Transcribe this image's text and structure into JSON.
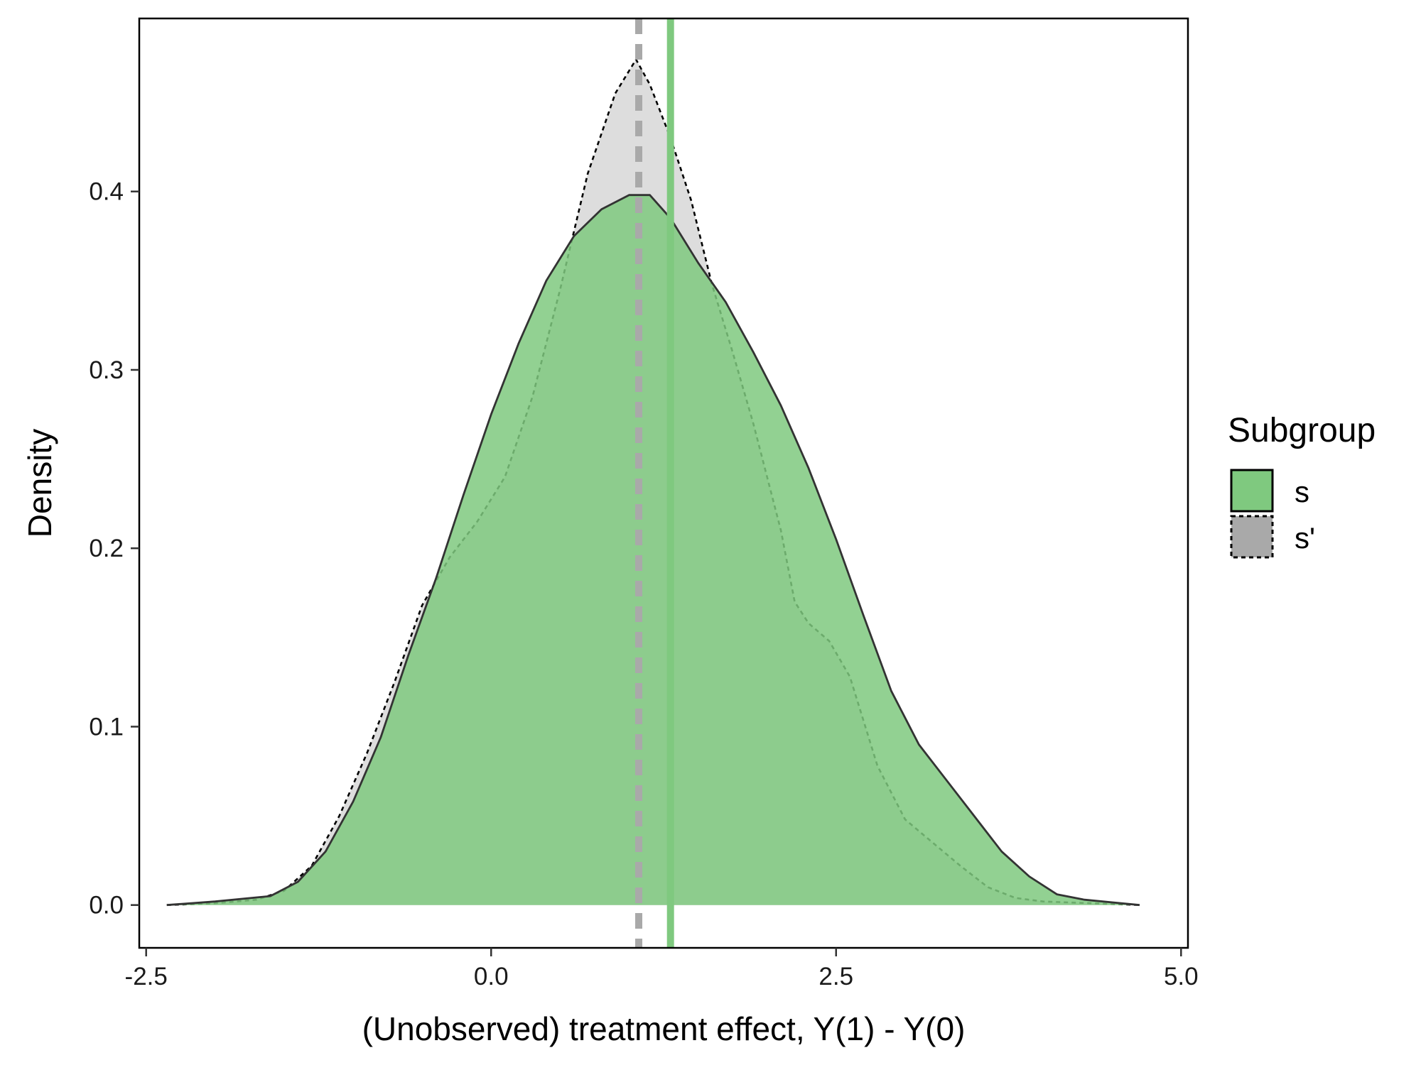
{
  "chart_data": {
    "type": "area",
    "title": "",
    "xlabel": "(Unobserved) treatment effect, Y(1) - Y(0)",
    "ylabel": "Density",
    "xlim": [
      -2.55,
      5.05
    ],
    "ylim": [
      -0.024,
      0.497
    ],
    "x_ticks": [
      -2.5,
      0.0,
      2.5,
      5.0
    ],
    "x_tick_labels": [
      "-2.5",
      "0.0",
      "2.5",
      "5.0"
    ],
    "y_ticks": [
      0.0,
      0.1,
      0.2,
      0.3,
      0.4
    ],
    "y_tick_labels": [
      "0.0",
      "0.1",
      "0.2",
      "0.3",
      "0.4"
    ],
    "grid": false,
    "legend": {
      "title": "Subgroup",
      "position": "right"
    },
    "series": [
      {
        "name": "s",
        "fill": "#7fc97f",
        "line_style": "solid",
        "mean_line": 1.3,
        "mean_line_color": "#7fc97f",
        "mean_line_style": "solid",
        "points": [
          [
            -2.35,
            0.0
          ],
          [
            -2.0,
            0.002
          ],
          [
            -1.6,
            0.005
          ],
          [
            -1.4,
            0.013
          ],
          [
            -1.2,
            0.03
          ],
          [
            -1.0,
            0.058
          ],
          [
            -0.8,
            0.094
          ],
          [
            -0.6,
            0.14
          ],
          [
            -0.4,
            0.183
          ],
          [
            -0.2,
            0.23
          ],
          [
            0.0,
            0.275
          ],
          [
            0.2,
            0.315
          ],
          [
            0.4,
            0.35
          ],
          [
            0.6,
            0.375
          ],
          [
            0.8,
            0.39
          ],
          [
            1.0,
            0.398
          ],
          [
            1.15,
            0.398
          ],
          [
            1.3,
            0.385
          ],
          [
            1.5,
            0.36
          ],
          [
            1.7,
            0.338
          ],
          [
            1.9,
            0.31
          ],
          [
            2.1,
            0.28
          ],
          [
            2.3,
            0.245
          ],
          [
            2.5,
            0.205
          ],
          [
            2.7,
            0.162
          ],
          [
            2.9,
            0.12
          ],
          [
            3.1,
            0.09
          ],
          [
            3.3,
            0.07
          ],
          [
            3.5,
            0.05
          ],
          [
            3.7,
            0.03
          ],
          [
            3.9,
            0.016
          ],
          [
            4.1,
            0.006
          ],
          [
            4.3,
            0.003
          ],
          [
            4.7,
            0.0
          ]
        ]
      },
      {
        "name": "s'",
        "fill": "#a9a9a9",
        "line_style": "dashed",
        "mean_line": 1.07,
        "mean_line_color": "#a9a9a9",
        "mean_line_style": "dashed",
        "points": [
          [
            -2.35,
            0.0
          ],
          [
            -2.0,
            0.001
          ],
          [
            -1.7,
            0.003
          ],
          [
            -1.5,
            0.008
          ],
          [
            -1.3,
            0.022
          ],
          [
            -1.1,
            0.05
          ],
          [
            -0.9,
            0.085
          ],
          [
            -0.7,
            0.125
          ],
          [
            -0.5,
            0.168
          ],
          [
            -0.3,
            0.195
          ],
          [
            -0.1,
            0.215
          ],
          [
            0.1,
            0.24
          ],
          [
            0.3,
            0.285
          ],
          [
            0.5,
            0.345
          ],
          [
            0.7,
            0.41
          ],
          [
            0.9,
            0.455
          ],
          [
            1.05,
            0.474
          ],
          [
            1.15,
            0.46
          ],
          [
            1.3,
            0.43
          ],
          [
            1.45,
            0.395
          ],
          [
            1.6,
            0.348
          ],
          [
            1.75,
            0.31
          ],
          [
            1.9,
            0.27
          ],
          [
            2.1,
            0.21
          ],
          [
            2.2,
            0.17
          ],
          [
            2.3,
            0.158
          ],
          [
            2.45,
            0.148
          ],
          [
            2.6,
            0.128
          ],
          [
            2.8,
            0.078
          ],
          [
            3.0,
            0.048
          ],
          [
            3.2,
            0.035
          ],
          [
            3.4,
            0.022
          ],
          [
            3.6,
            0.01
          ],
          [
            3.8,
            0.004
          ],
          [
            4.0,
            0.002
          ],
          [
            4.7,
            0.0
          ]
        ]
      }
    ]
  }
}
